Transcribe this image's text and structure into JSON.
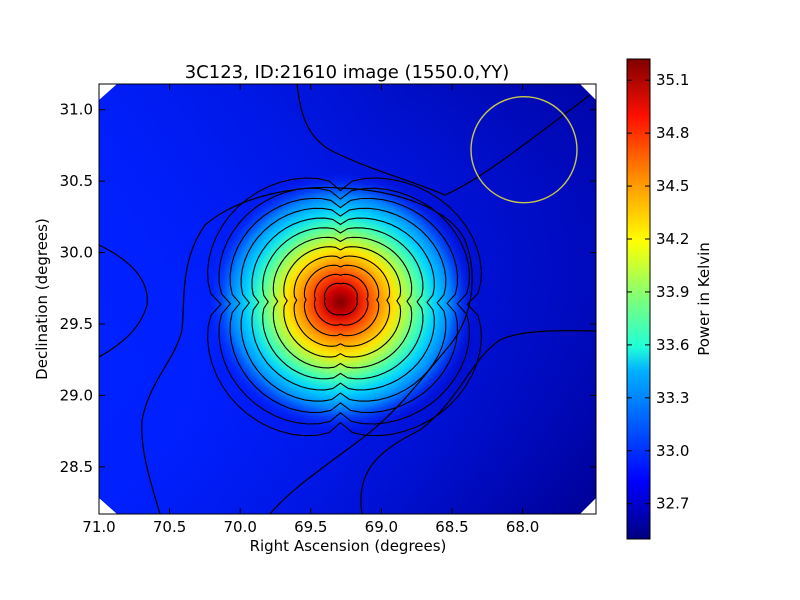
{
  "chart_data": {
    "type": "heatmap",
    "title": "3C123, ID:21610 image (1550.0,YY)",
    "xlabel": "Right Ascension (degrees)",
    "ylabel": "Declination (degrees)",
    "colorbar_label": "Power in Kelvin",
    "colormap": "jet",
    "x_axis_inverted": true,
    "xlim": [
      71.0,
      67.48
    ],
    "ylim": [
      28.17,
      31.18
    ],
    "x_ticks": [
      71.0,
      70.5,
      70.0,
      69.5,
      69.0,
      68.5,
      68.0
    ],
    "x_tick_labels": [
      "71.0",
      "70.5",
      "70.0",
      "69.5",
      "69.0",
      "68.5",
      "68.0"
    ],
    "y_ticks": [
      28.5,
      29.0,
      29.5,
      30.0,
      30.5,
      31.0
    ],
    "y_tick_labels": [
      "28.5",
      "29.0",
      "29.5",
      "30.0",
      "30.5",
      "31.0"
    ],
    "colorbar_range": [
      32.5,
      35.22
    ],
    "colorbar_ticks": [
      32.7,
      33.0,
      33.3,
      33.6,
      33.9,
      34.2,
      34.5,
      34.8,
      35.1
    ],
    "colorbar_tick_labels": [
      "32.7",
      "33.0",
      "33.3",
      "33.6",
      "33.9",
      "34.2",
      "34.5",
      "34.8",
      "35.1"
    ],
    "peak": {
      "ra": 69.29,
      "dec": 29.68,
      "value": 35.2
    },
    "contour_color": "#000000",
    "beam_circle": {
      "ra": 67.99,
      "dec": 30.72,
      "color": "#c8c84a"
    }
  }
}
